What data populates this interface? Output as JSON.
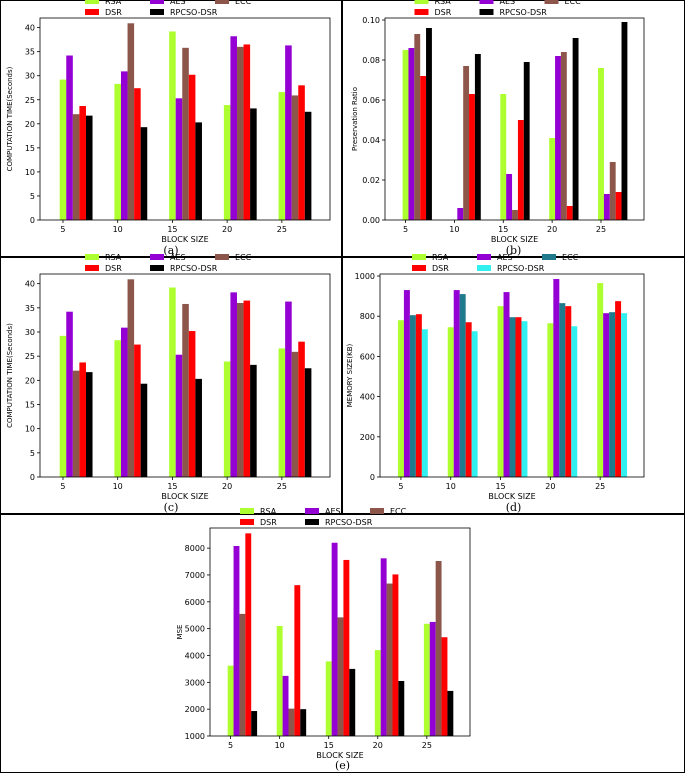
{
  "chart_data": [
    {
      "type": "bar",
      "caption": "(a)",
      "xlabel": "BLOCK SIZE",
      "ylabel": "COMPUTATION TIME(Seconds)",
      "categories": [
        "5",
        "10",
        "15",
        "20",
        "25"
      ],
      "ylim": [
        0,
        42
      ],
      "yticks": [
        "0",
        "5",
        "10",
        "15",
        "20",
        "25",
        "30",
        "35",
        "40"
      ],
      "ytick_values": [
        0,
        5,
        10,
        15,
        20,
        25,
        30,
        35,
        40
      ],
      "legend": "top-center, 3 columns",
      "series": [
        {
          "name": "RSA",
          "color": "#adff2f",
          "values": [
            29.2,
            28.3,
            39.2,
            23.9,
            26.6
          ]
        },
        {
          "name": "AES",
          "color": "#9400d3",
          "values": [
            34.2,
            30.9,
            25.3,
            38.2,
            36.3
          ]
        },
        {
          "name": "ECC",
          "color": "#8c564b",
          "values": [
            22.0,
            40.9,
            35.8,
            36.0,
            25.9
          ]
        },
        {
          "name": "DSR",
          "color": "#ff0000",
          "values": [
            23.7,
            27.4,
            30.2,
            36.5,
            28.0
          ]
        },
        {
          "name": "RPCSO-DSR",
          "color": "#000000",
          "values": [
            21.7,
            19.3,
            20.3,
            23.2,
            22.5
          ]
        }
      ]
    },
    {
      "type": "bar",
      "caption": "(b)",
      "xlabel": "BLOCK SIZE",
      "ylabel": "Preservation Ratio",
      "categories": [
        "5",
        "10",
        "15",
        "20",
        "25"
      ],
      "ylim": [
        0,
        0.101
      ],
      "yticks": [
        "0.00",
        "0.02",
        "0.04",
        "0.06",
        "0.08",
        "0.10"
      ],
      "ytick_values": [
        0,
        0.02,
        0.04,
        0.06,
        0.08,
        0.1
      ],
      "legend": "top-center, 3 columns",
      "series": [
        {
          "name": "RSA",
          "color": "#adff2f",
          "values": [
            0.085,
            0.0,
            0.063,
            0.041,
            0.076
          ]
        },
        {
          "name": "AES",
          "color": "#9400d3",
          "values": [
            0.086,
            0.006,
            0.023,
            0.082,
            0.013
          ]
        },
        {
          "name": "ECC",
          "color": "#8c564b",
          "values": [
            0.093,
            0.077,
            0.005,
            0.084,
            0.029
          ]
        },
        {
          "name": "DSR",
          "color": "#ff0000",
          "values": [
            0.072,
            0.063,
            0.05,
            0.007,
            0.014
          ]
        },
        {
          "name": "RPCSO-DSR",
          "color": "#000000",
          "values": [
            0.096,
            0.083,
            0.079,
            0.091,
            0.099
          ]
        }
      ]
    },
    {
      "type": "bar",
      "caption": "(c)",
      "xlabel": "BLOCK SIZE",
      "ylabel": "COMPUTATION TIME(Seconds)",
      "categories": [
        "5",
        "10",
        "15",
        "20",
        "25"
      ],
      "ylim": [
        0,
        42
      ],
      "yticks": [
        "0",
        "5",
        "10",
        "15",
        "20",
        "25",
        "30",
        "35",
        "40"
      ],
      "ytick_values": [
        0,
        5,
        10,
        15,
        20,
        25,
        30,
        35,
        40
      ],
      "legend": "top-center, 3 columns",
      "series": [
        {
          "name": "RSA",
          "color": "#adff2f",
          "values": [
            29.2,
            28.3,
            39.2,
            23.9,
            26.6
          ]
        },
        {
          "name": "AES",
          "color": "#9400d3",
          "values": [
            34.2,
            30.9,
            25.3,
            38.2,
            36.3
          ]
        },
        {
          "name": "ECC",
          "color": "#8c564b",
          "values": [
            22.0,
            40.9,
            35.8,
            36.0,
            25.9
          ]
        },
        {
          "name": "DSR",
          "color": "#ff0000",
          "values": [
            23.7,
            27.4,
            30.2,
            36.5,
            28.0
          ]
        },
        {
          "name": "RPCSO-DSR",
          "color": "#000000",
          "values": [
            21.7,
            19.3,
            20.3,
            23.2,
            22.5
          ]
        }
      ]
    },
    {
      "type": "bar",
      "caption": "(d)",
      "xlabel": "BLOCK SIZE",
      "ylabel": "MEMORY SIZE(KB)",
      "categories": [
        "5",
        "10",
        "15",
        "20",
        "25"
      ],
      "ylim": [
        0,
        1010
      ],
      "yticks": [
        "0",
        "200",
        "400",
        "600",
        "800",
        "1000"
      ],
      "ytick_values": [
        0,
        200,
        400,
        600,
        800,
        1000
      ],
      "legend": "top-center, 3 columns",
      "series": [
        {
          "name": "RSA",
          "color": "#adff2f",
          "values": [
            780,
            745,
            850,
            765,
            965
          ]
        },
        {
          "name": "AES",
          "color": "#9400d3",
          "values": [
            930,
            930,
            920,
            985,
            815
          ]
        },
        {
          "name": "ECC",
          "color": "#1f7a8c",
          "values": [
            805,
            910,
            795,
            865,
            820
          ]
        },
        {
          "name": "DSR",
          "color": "#ff0000",
          "values": [
            810,
            770,
            795,
            850,
            875
          ]
        },
        {
          "name": "RPCSO-DSR",
          "color": "#33f0f0",
          "values": [
            735,
            725,
            775,
            750,
            815
          ]
        }
      ]
    },
    {
      "type": "bar",
      "caption": "(e)",
      "xlabel": "BLOCK SIZE",
      "ylabel": "MSE",
      "categories": [
        "5",
        "10",
        "15",
        "20",
        "25"
      ],
      "ylim": [
        1000,
        8750
      ],
      "yticks": [
        "1000",
        "2000",
        "3000",
        "4000",
        "5000",
        "6000",
        "7000",
        "8000"
      ],
      "ytick_values": [
        1000,
        2000,
        3000,
        4000,
        5000,
        6000,
        7000,
        8000
      ],
      "legend": "top-center, 3 columns",
      "series": [
        {
          "name": "RSA",
          "color": "#adff2f",
          "values": [
            3620,
            5100,
            3780,
            4200,
            5180
          ]
        },
        {
          "name": "AES",
          "color": "#9400d3",
          "values": [
            8080,
            3240,
            8200,
            7620,
            5250
          ]
        },
        {
          "name": "ECC",
          "color": "#8c564b",
          "values": [
            5550,
            2020,
            5420,
            6680,
            7520
          ]
        },
        {
          "name": "DSR",
          "color": "#ff0000",
          "values": [
            8550,
            6620,
            7560,
            7020,
            4680
          ]
        },
        {
          "name": "RPCSO-DSR",
          "color": "#000000",
          "values": [
            1930,
            2000,
            3500,
            3050,
            2680
          ]
        }
      ]
    }
  ]
}
